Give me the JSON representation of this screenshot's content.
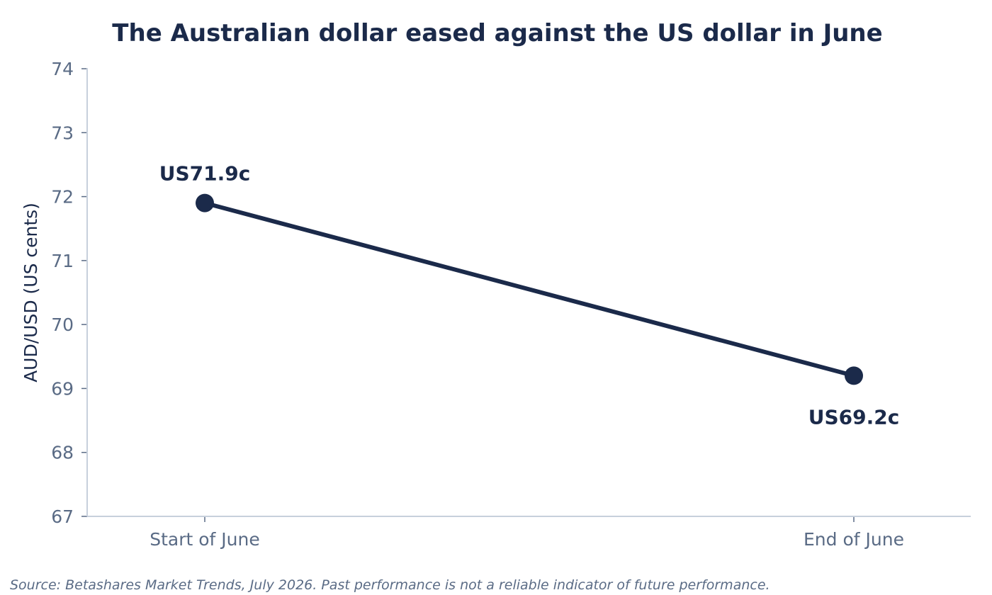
{
  "chart_data": {
    "type": "line",
    "title": "The Australian dollar eased against the US dollar in June",
    "xlabel": "",
    "ylabel": "AUD/USD (US cents)",
    "categories": [
      "Start of June",
      "End of June"
    ],
    "series": [
      {
        "values": [
          71.9,
          69.2
        ],
        "data_labels": [
          "US71.9c",
          "US69.2c"
        ],
        "color": "#1b2a4a"
      }
    ],
    "ylim": [
      67,
      74
    ],
    "yticks": [
      67,
      68,
      69,
      70,
      71,
      72,
      73,
      74
    ],
    "grid": false,
    "legend": "none",
    "source": "Source: Betashares Market Trends, July 2026. Past performance is not a reliable indicator of future performance."
  },
  "colors": {
    "line": "#1b2a4a",
    "axis": "#c7d0dc",
    "tick_text": "#5a6b85"
  }
}
